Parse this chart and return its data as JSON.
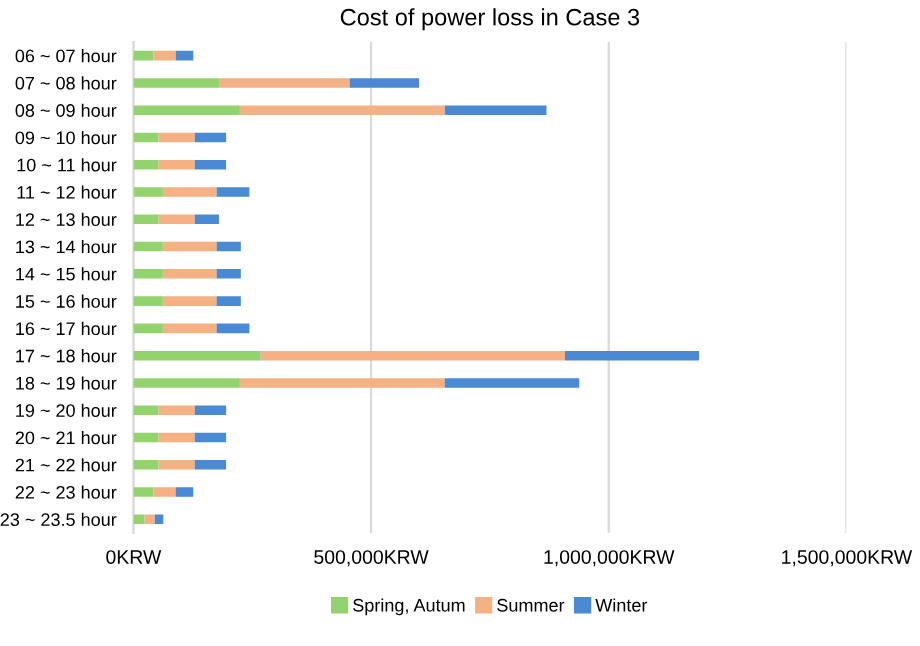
{
  "chart_data": {
    "type": "bar",
    "title": "Cost of power loss in Case 3",
    "orientation": "horizontal",
    "stacked": true,
    "categories": [
      "06 ~ 07 hour",
      "07 ~ 08 hour",
      "08 ~ 09 hour",
      "09 ~ 10 hour",
      "10 ~ 11 hour",
      "11 ~ 12 hour",
      "12 ~ 13 hour",
      "13 ~ 14 hour",
      "14 ~ 15 hour",
      "15 ~ 16 hour",
      "16 ~ 17 hour",
      "17 ~ 18 hour",
      "18 ~ 19 hour",
      "19 ~ 20 hour",
      "20 ~ 21 hour",
      "21 ~ 22 hour",
      "22 ~ 23 hour",
      "23 ~ 23.5 hour"
    ],
    "series": [
      {
        "name": "Spring, Autum",
        "color": "#92d36e",
        "values": [
          42000,
          180000,
          224000,
          53000,
          53000,
          62000,
          53000,
          62000,
          62000,
          62000,
          62000,
          268000,
          224000,
          53000,
          53000,
          53000,
          42000,
          23000
        ]
      },
      {
        "name": "Summer",
        "color": "#f4b183",
        "values": [
          47000,
          275000,
          431000,
          76000,
          76000,
          113000,
          76000,
          113000,
          113000,
          113000,
          113000,
          640000,
          431000,
          76000,
          76000,
          76000,
          47000,
          22000
        ]
      },
      {
        "name": "Winter",
        "color": "#4a89d4",
        "values": [
          37000,
          146000,
          214000,
          66000,
          66000,
          69000,
          51000,
          51000,
          51000,
          51000,
          69000,
          282000,
          283000,
          66000,
          66000,
          66000,
          37000,
          18000
        ]
      }
    ],
    "xlim": [
      0,
      1500000
    ],
    "xticks": [
      {
        "value": 0,
        "label": "0KRW"
      },
      {
        "value": 500000,
        "label": "500,000KRW"
      },
      {
        "value": 1000000,
        "label": "1,000,000KRW"
      },
      {
        "value": 1500000,
        "label": "1,500,000KRW"
      }
    ],
    "grid": "x",
    "legend": "bottom"
  }
}
